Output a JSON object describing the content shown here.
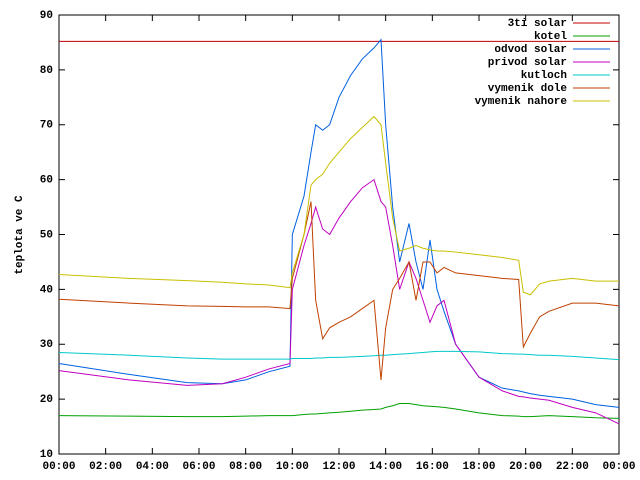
{
  "chart_data": {
    "type": "line",
    "y_label": "teplota ve C",
    "x": [
      0,
      3,
      5.5,
      7,
      8,
      9,
      9.9,
      10,
      10.5,
      10.8,
      11,
      11.3,
      11.6,
      12,
      12.5,
      13,
      13.5,
      13.8,
      14,
      14.3,
      14.6,
      15,
      15.3,
      15.6,
      15.9,
      16.2,
      16.5,
      17,
      18,
      19,
      19.7,
      19.9,
      20.2,
      20.6,
      21,
      22,
      23,
      24
    ],
    "xlim": [
      0,
      24
    ],
    "xticks": [
      {
        "value": 0,
        "label": "00:00"
      },
      {
        "value": 2,
        "label": "02:00"
      },
      {
        "value": 4,
        "label": "04:00"
      },
      {
        "value": 6,
        "label": "06:00"
      },
      {
        "value": 8,
        "label": "08:00"
      },
      {
        "value": 10,
        "label": "10:00"
      },
      {
        "value": 12,
        "label": "12:00"
      },
      {
        "value": 14,
        "label": "14:00"
      },
      {
        "value": 16,
        "label": "16:00"
      },
      {
        "value": 18,
        "label": "18:00"
      },
      {
        "value": 20,
        "label": "20:00"
      },
      {
        "value": 22,
        "label": "22:00"
      },
      {
        "value": 24,
        "label": "00:00"
      }
    ],
    "ylim": [
      10,
      90
    ],
    "yticks": [
      10,
      20,
      30,
      40,
      50,
      60,
      70,
      80,
      90
    ],
    "legend": "top-right",
    "series": [
      {
        "name": "3ti solar",
        "color": "#c00000",
        "values": [
          85.2,
          85.2,
          85.2,
          85.2,
          85.2,
          85.2,
          85.2,
          85.2,
          85.2,
          85.2,
          85.2,
          85.2,
          85.2,
          85.2,
          85.2,
          85.2,
          85.2,
          85.2,
          85.2,
          85.2,
          85.2,
          85.2,
          85.2,
          85.2,
          85.2,
          85.2,
          85.2,
          85.2,
          85.2,
          85.2,
          85.2,
          85.2,
          85.2,
          85.2,
          85.2,
          85.2,
          85.2,
          85.2
        ]
      },
      {
        "name": "kotel",
        "color": "#00a000",
        "values": [
          17,
          16.9,
          16.8,
          16.8,
          16.9,
          17,
          17,
          17,
          17.2,
          17.3,
          17.3,
          17.4,
          17.5,
          17.6,
          17.8,
          18,
          18.1,
          18.2,
          18.5,
          18.8,
          19.2,
          19.2,
          19,
          18.8,
          18.7,
          18.6,
          18.5,
          18.2,
          17.5,
          17,
          16.9,
          16.8,
          16.8,
          16.9,
          17,
          16.8,
          16.6,
          16.5
        ]
      },
      {
        "name": "odvod solar",
        "color": "#0060e0",
        "values": [
          26.5,
          24.5,
          23,
          22.8,
          23.5,
          25,
          26,
          50,
          57,
          65,
          70,
          69,
          70,
          75,
          79,
          82,
          84,
          85.5,
          70,
          55,
          45,
          52,
          45,
          40,
          49,
          40,
          36,
          30,
          24,
          22,
          21.5,
          21.3,
          21,
          20.7,
          20.5,
          20,
          19,
          18.5
        ]
      },
      {
        "name": "privod solar",
        "color": "#c000c0",
        "values": [
          25.2,
          23.5,
          22.5,
          22.8,
          24,
          25.5,
          26.5,
          40,
          48,
          52,
          55,
          51,
          50,
          53,
          56,
          58.5,
          60,
          56,
          55,
          48,
          40,
          45,
          42,
          38,
          34,
          37,
          38,
          30,
          24,
          21.5,
          20.5,
          20.4,
          20.2,
          20,
          19.8,
          18.5,
          17.5,
          15.5
        ]
      },
      {
        "name": "kutloch",
        "color": "#00c8c8",
        "values": [
          28.5,
          28,
          27.5,
          27.3,
          27.3,
          27.3,
          27.3,
          27.4,
          27.4,
          27.4,
          27.5,
          27.5,
          27.6,
          27.6,
          27.7,
          27.8,
          27.9,
          28,
          28,
          28.1,
          28.2,
          28.3,
          28.4,
          28.5,
          28.6,
          28.7,
          28.7,
          28.7,
          28.6,
          28.3,
          28.2,
          28.2,
          28.1,
          28,
          28,
          27.8,
          27.5,
          27.2
        ]
      },
      {
        "name": "vymenik dole",
        "color": "#c04000",
        "values": [
          38.2,
          37.5,
          37,
          36.9,
          36.8,
          36.8,
          36.5,
          42,
          50,
          56,
          38,
          31,
          33,
          34,
          35,
          36.5,
          38,
          23.5,
          33,
          40,
          42,
          45,
          38,
          45,
          45,
          43,
          44,
          43,
          42.5,
          42,
          41.8,
          29.5,
          32,
          35,
          36,
          37.5,
          37.5,
          37
        ]
      },
      {
        "name": "vymenik nahore",
        "color": "#c8c000",
        "values": [
          42.7,
          42,
          41.6,
          41.3,
          41,
          40.8,
          40.3,
          43,
          50,
          59,
          60,
          61,
          63,
          65,
          67.5,
          69.5,
          71.5,
          70,
          63,
          53,
          47,
          47.5,
          48,
          47.5,
          47.2,
          47,
          47,
          46.8,
          46.3,
          45.8,
          45.3,
          39.5,
          39,
          41,
          41.5,
          42,
          41.5,
          41.5
        ]
      }
    ]
  }
}
